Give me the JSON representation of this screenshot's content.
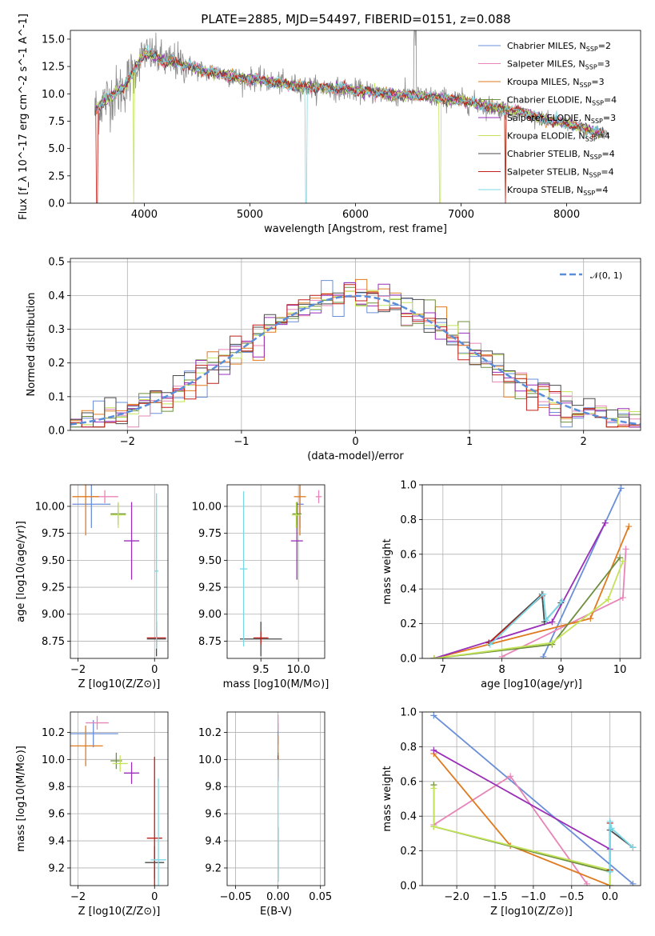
{
  "figure_title": "PLATE=2885, MJD=54497, FIBERID=0151, z=0.088",
  "colors": [
    "#6a8fd8",
    "#e884b8",
    "#e07a1e",
    "#6e8f3c",
    "#9a2fb8",
    "#c3e35a",
    "#4a4a4a",
    "#c0201a",
    "#7ad8e6"
  ],
  "chart_data": [
    {
      "id": "spectrum",
      "type": "line",
      "xlabel": "wavelength [Angstrom, rest frame]",
      "ylabel": "Flux [f_λ 10^-17 erg cm^-2 s^-1 A^-1]",
      "xlim": [
        3300,
        8700
      ],
      "ylim": [
        0,
        15.8
      ],
      "xticks": [
        "4000",
        "5000",
        "6000",
        "7000",
        "8000"
      ],
      "xtick_values": [
        4000,
        5000,
        6000,
        7000,
        8000
      ],
      "yticks": [
        "0.0",
        "2.5",
        "5.0",
        "7.5",
        "10.0",
        "12.5",
        "15.0"
      ],
      "ytick_values": [
        0,
        2.5,
        5,
        7.5,
        10,
        12.5,
        15
      ],
      "legend_position": "upper-right",
      "data_range_note_wavelength": [
        3530,
        8400
      ],
      "continuum": {
        "x": [
          3530,
          3600,
          3700,
          3800,
          3900,
          4000,
          4100,
          4200,
          4300,
          4400,
          4500,
          4600,
          4700,
          4800,
          4900,
          5000,
          5200,
          5400,
          5600,
          5800,
          6000,
          6200,
          6400,
          6600,
          6800,
          7000,
          7200,
          7400,
          7600,
          7800,
          8000,
          8200,
          8400
        ],
        "y": [
          8.4,
          9.2,
          9.9,
          10.5,
          12.0,
          13.8,
          13.4,
          12.9,
          12.9,
          12.6,
          12.3,
          12.0,
          11.9,
          11.7,
          11.4,
          11.4,
          11.1,
          10.8,
          10.6,
          10.5,
          10.3,
          10.1,
          9.9,
          9.8,
          9.6,
          9.4,
          9.0,
          8.6,
          8.3,
          7.6,
          7.3,
          6.7,
          6.3
        ]
      },
      "series": [
        {
          "name": "Chabrier MILES, N_SSP=2",
          "label_main": "Chabrier MILES, N",
          "label_sub": "SSP",
          "label_tail": "=2"
        },
        {
          "name": "Salpeter MILES, N_SSP=3",
          "label_main": "Salpeter MILES, N",
          "label_sub": "SSP",
          "label_tail": "=3"
        },
        {
          "name": "Kroupa MILES, N_SSP=3",
          "label_main": "Kroupa MILES, N",
          "label_sub": "SSP",
          "label_tail": "=3"
        },
        {
          "name": "Chabrier ELODIE, N_SSP=4",
          "label_main": "Chabrier ELODIE, N",
          "label_sub": "SSP",
          "label_tail": "=4"
        },
        {
          "name": "Salpeter ELODIE, N_SSP=3",
          "label_main": "Salpeter ELODIE, N",
          "label_sub": "SSP",
          "label_tail": "=3"
        },
        {
          "name": "Kroupa ELODIE, N_SSP=4",
          "label_main": "Kroupa ELODIE, N",
          "label_sub": "SSP",
          "label_tail": "=4"
        },
        {
          "name": "Chabrier STELIB, N_SSP=4",
          "label_main": "Chabrier STELIB, N",
          "label_sub": "SSP",
          "label_tail": "=4"
        },
        {
          "name": "Salpeter STELIB, N_SSP=4",
          "label_main": "Salpeter STELIB, N",
          "label_sub": "SSP",
          "label_tail": "=4"
        },
        {
          "name": "Kroupa STELIB, N_SSP=4",
          "label_main": "Kroupa STELIB, N",
          "label_sub": "SSP",
          "label_tail": "=4"
        }
      ]
    },
    {
      "id": "residuals",
      "type": "histogram",
      "xlabel": "(data-model)/error",
      "ylabel": "Normed distribution",
      "xlim": [
        -2.5,
        2.5
      ],
      "ylim": [
        0,
        0.51
      ],
      "xticks": [
        "−2",
        "−1",
        "0",
        "1",
        "2"
      ],
      "xtick_values": [
        -2,
        -1,
        0,
        1,
        2
      ],
      "yticks": [
        "0.0",
        "0.1",
        "0.2",
        "0.3",
        "0.4",
        "0.5"
      ],
      "ytick_values": [
        0,
        0.1,
        0.2,
        0.3,
        0.4,
        0.5
      ],
      "bin_width": 0.1,
      "reference_curve": "𝒩(0, 1)",
      "legend_position": "upper-right"
    },
    {
      "id": "age_vs_Z",
      "type": "errorbar",
      "xlabel": "Z [log10(Z/Z⊙)]",
      "ylabel": "age [log10(age/yr)]",
      "xlim": [
        -2.2,
        0.35
      ],
      "ylim": [
        8.59,
        10.2
      ],
      "xticks": [
        "−2",
        "0"
      ],
      "xtick_values": [
        -2,
        0
      ],
      "yticks": [
        "8.75",
        "9.00",
        "9.25",
        "9.50",
        "9.75",
        "10.00"
      ],
      "ytick_values": [
        8.75,
        9.0,
        9.25,
        9.5,
        9.75,
        10.0
      ],
      "points": [
        {
          "c": 0,
          "x": -1.65,
          "y": 10.02,
          "xe": 0.5,
          "ye": 0.22
        },
        {
          "c": 1,
          "x": -1.3,
          "y": 10.09,
          "xe": 0.35,
          "ye": 0.06
        },
        {
          "c": 2,
          "x": -1.8,
          "y": 10.09,
          "xe": 0.35,
          "ye": 0.36
        },
        {
          "c": 3,
          "x": -0.95,
          "y": 9.93,
          "xe": 0.2,
          "ye": 0.1
        },
        {
          "c": 4,
          "x": -0.6,
          "y": 9.68,
          "xe": 0.2,
          "ye": 0.36
        },
        {
          "c": 5,
          "x": -0.95,
          "y": 9.92,
          "xe": 0.2,
          "ye": 0.12
        },
        {
          "c": 6,
          "x": 0.05,
          "y": 8.77,
          "xe": 0.25,
          "ye": 0.16
        },
        {
          "c": 7,
          "x": 0.05,
          "y": 8.78,
          "xe": 0.25,
          "ye": 0.06
        },
        {
          "c": 8,
          "x": 0.05,
          "y": 9.4,
          "xe": 0.05,
          "ye": 0.72
        }
      ]
    },
    {
      "id": "age_vs_mass",
      "type": "errorbar",
      "xlabel": "mass [log10(M/M⊙)]",
      "ylabel": "",
      "xlim": [
        9.05,
        10.35
      ],
      "ylim": [
        8.59,
        10.2
      ],
      "xticks": [
        "9.5",
        "10.0"
      ],
      "xtick_values": [
        9.5,
        10.0
      ],
      "yticks": [
        "8.75",
        "9.00",
        "9.25",
        "9.50",
        "9.75",
        "10.00"
      ],
      "ytick_values": [
        8.75,
        9.0,
        9.25,
        9.5,
        9.75,
        10.0
      ],
      "points": [
        {
          "c": 0,
          "x": 10.02,
          "y": 10.02,
          "xe": 0.05,
          "ye": 0.22
        },
        {
          "c": 1,
          "x": 10.27,
          "y": 10.09,
          "xe": 0.04,
          "ye": 0.06
        },
        {
          "c": 2,
          "x": 10.02,
          "y": 10.09,
          "xe": 0.08,
          "ye": 0.36
        },
        {
          "c": 3,
          "x": 9.98,
          "y": 9.93,
          "xe": 0.06,
          "ye": 0.1
        },
        {
          "c": 4,
          "x": 9.98,
          "y": 9.68,
          "xe": 0.08,
          "ye": 0.36
        },
        {
          "c": 5,
          "x": 9.97,
          "y": 9.92,
          "xe": 0.06,
          "ye": 0.12
        },
        {
          "c": 6,
          "x": 9.5,
          "y": 8.77,
          "xe": 0.28,
          "ye": 0.16
        },
        {
          "c": 7,
          "x": 9.5,
          "y": 8.78,
          "xe": 0.1,
          "ye": 0.06
        },
        {
          "c": 8,
          "x": 9.27,
          "y": 9.42,
          "xe": 0.05,
          "ye": 0.72
        }
      ]
    },
    {
      "id": "mass_weight_vs_age",
      "type": "line",
      "xlabel": "age [log10(age/yr)]",
      "ylabel": "mass weight",
      "xlim": [
        6.65,
        10.35
      ],
      "ylim": [
        0,
        1
      ],
      "xticks": [
        "7",
        "8",
        "9",
        "10"
      ],
      "xtick_values": [
        7,
        8,
        9,
        10
      ],
      "yticks": [
        "0.0",
        "0.2",
        "0.4",
        "0.6",
        "0.8",
        "1.0"
      ],
      "ytick_values": [
        0,
        0.2,
        0.4,
        0.6,
        0.8,
        1.0
      ],
      "lines": [
        {
          "c": 0,
          "x": [
            8.7,
            10.02
          ],
          "y": [
            0.01,
            0.98
          ]
        },
        {
          "c": 1,
          "x": [
            8.0,
            10.05,
            10.1
          ],
          "y": [
            0.01,
            0.35,
            0.63
          ]
        },
        {
          "c": 2,
          "x": [
            6.85,
            9.5,
            10.15
          ],
          "y": [
            0.0,
            0.23,
            0.76
          ]
        },
        {
          "c": 3,
          "x": [
            6.85,
            8.85,
            10.0
          ],
          "y": [
            0.0,
            0.08,
            0.58
          ]
        },
        {
          "c": 4,
          "x": [
            6.85,
            8.85,
            9.75
          ],
          "y": [
            0.0,
            0.21,
            0.78
          ]
        },
        {
          "c": 5,
          "x": [
            6.85,
            8.85,
            9.8,
            10.05
          ],
          "y": [
            0.0,
            0.09,
            0.34,
            0.56
          ]
        },
        {
          "c": 6,
          "x": [
            7.78,
            8.68,
            8.72,
            9.0
          ],
          "y": [
            0.09,
            0.37,
            0.21,
            0.32
          ]
        },
        {
          "c": 7,
          "x": [
            7.78,
            8.68
          ],
          "y": [
            0.09,
            0.36
          ]
        },
        {
          "c": 8,
          "x": [
            7.8,
            8.7,
            8.75,
            9.02
          ],
          "y": [
            0.08,
            0.37,
            0.22,
            0.33
          ]
        }
      ]
    },
    {
      "id": "mass_vs_Z",
      "type": "errorbar",
      "xlabel": "Z [log10(Z/Z⊙)]",
      "ylabel": "mass [log10(M/M⊙)]",
      "xlim": [
        -2.2,
        0.35
      ],
      "ylim": [
        9.07,
        10.35
      ],
      "xticks": [
        "−2",
        "0"
      ],
      "xtick_values": [
        -2,
        0
      ],
      "yticks": [
        "9.2",
        "9.4",
        "9.6",
        "9.8",
        "10.0",
        "10.2"
      ],
      "ytick_values": [
        9.2,
        9.4,
        9.6,
        9.8,
        10.0,
        10.2
      ],
      "points": [
        {
          "c": 0,
          "x": -1.6,
          "y": 10.19,
          "xe": 0.65,
          "ye": 0.1
        },
        {
          "c": 1,
          "x": -1.5,
          "y": 10.27,
          "xe": 0.3,
          "ye": 0.05
        },
        {
          "c": 2,
          "x": -1.8,
          "y": 10.1,
          "xe": 0.45,
          "ye": 0.15
        },
        {
          "c": 3,
          "x": -1.0,
          "y": 9.99,
          "xe": 0.15,
          "ye": 0.06
        },
        {
          "c": 4,
          "x": -0.6,
          "y": 9.9,
          "xe": 0.2,
          "ye": 0.08
        },
        {
          "c": 5,
          "x": -0.9,
          "y": 9.97,
          "xe": 0.2,
          "ye": 0.06
        },
        {
          "c": 6,
          "x": 0.0,
          "y": 9.24,
          "xe": 0.25,
          "ye": 0.12
        },
        {
          "c": 7,
          "x": 0.0,
          "y": 9.42,
          "xe": 0.2,
          "ye": 0.6
        },
        {
          "c": 8,
          "x": 0.1,
          "y": 9.26,
          "xe": 0.2,
          "ye": 0.6
        }
      ]
    },
    {
      "id": "mass_vs_ebv",
      "type": "errorbar",
      "xlabel": "E(B-V)",
      "ylabel": "",
      "xlim": [
        -0.06,
        0.055
      ],
      "ylim": [
        9.07,
        10.35
      ],
      "xticks": [
        "−0.05",
        "0.00",
        "0.05"
      ],
      "xtick_values": [
        -0.05,
        0,
        0.05
      ],
      "yticks": [
        "9.2",
        "9.4",
        "9.6",
        "9.8",
        "10.0",
        "10.2"
      ],
      "ytick_values": [
        9.2,
        9.4,
        9.6,
        9.8,
        10.0,
        10.2
      ],
      "points": [
        {
          "c": 0,
          "x": 0,
          "y": 10.19,
          "xe": 0.0,
          "ye": 0.08
        },
        {
          "c": 1,
          "x": 0,
          "y": 10.27,
          "xe": 0.0,
          "ye": 0.06
        },
        {
          "c": 2,
          "x": 0,
          "y": 10.1,
          "xe": 0.0,
          "ye": 0.08
        },
        {
          "c": 3,
          "x": 0,
          "y": 9.99,
          "xe": 0.0,
          "ye": 0.06
        },
        {
          "c": 4,
          "x": 0,
          "y": 9.9,
          "xe": 0.0,
          "ye": 0.06
        },
        {
          "c": 5,
          "x": 0,
          "y": 9.97,
          "xe": 0.0,
          "ye": 0.06
        },
        {
          "c": 6,
          "x": 0,
          "y": 9.3,
          "xe": 0.0,
          "ye": 0.2
        },
        {
          "c": 7,
          "x": 0,
          "y": 9.95,
          "xe": 0.0,
          "ye": 0.08
        },
        {
          "c": 8,
          "x": 0,
          "y": 9.55,
          "xe": 0.0,
          "ye": 0.45
        }
      ]
    },
    {
      "id": "mass_weight_vs_Z",
      "type": "line",
      "xlabel": "Z [log10(Z/Z⊙)]",
      "ylabel": "mass weight",
      "xlim": [
        -2.45,
        0.4
      ],
      "ylim": [
        0,
        1
      ],
      "xticks": [
        "−2.0",
        "−1.5",
        "−1.0",
        "−0.5",
        "0.0"
      ],
      "xtick_values": [
        -2,
        -1.5,
        -1,
        -0.5,
        0
      ],
      "yticks": [
        "0.0",
        "0.2",
        "0.4",
        "0.6",
        "0.8",
        "1.0"
      ],
      "ytick_values": [
        0,
        0.2,
        0.4,
        0.6,
        0.8,
        1.0
      ],
      "lines": [
        {
          "c": 0,
          "x": [
            -2.3,
            0.3
          ],
          "y": [
            0.98,
            0.01
          ]
        },
        {
          "c": 1,
          "x": [
            -2.3,
            -1.3,
            -0.3
          ],
          "y": [
            0.35,
            0.63,
            0.01
          ]
        },
        {
          "c": 2,
          "x": [
            -2.3,
            -1.3,
            0.0
          ],
          "y": [
            0.76,
            0.23,
            0.0
          ]
        },
        {
          "c": 3,
          "x": [
            -2.3,
            -2.3,
            0.0,
            0.0
          ],
          "y": [
            0.58,
            0.34,
            0.08,
            0.0
          ]
        },
        {
          "c": 4,
          "x": [
            -2.3,
            0.0
          ],
          "y": [
            0.78,
            0.21
          ]
        },
        {
          "c": 5,
          "x": [
            -2.3,
            -2.3,
            0.0,
            0.0
          ],
          "y": [
            0.56,
            0.34,
            0.09,
            0.0
          ]
        },
        {
          "c": 6,
          "x": [
            0.0,
            0.0,
            0.3
          ],
          "y": [
            0.09,
            0.32,
            0.22
          ]
        },
        {
          "c": 7,
          "x": [
            0.0,
            0.0
          ],
          "y": [
            0.09,
            0.36
          ]
        },
        {
          "c": 8,
          "x": [
            0.0,
            0.0,
            0.02,
            0.3
          ],
          "y": [
            0.08,
            0.37,
            0.33,
            0.22
          ]
        }
      ]
    }
  ]
}
